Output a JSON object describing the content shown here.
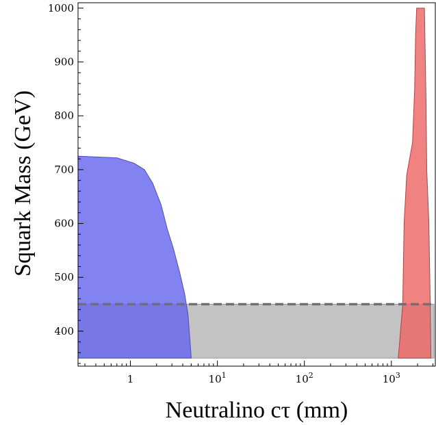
{
  "chart_data": {
    "type": "area",
    "xlabel": "Neutralino cτ (mm)",
    "ylabel": "Squark Mass (GeV)",
    "x_scale": "log",
    "xlim": [
      0.25,
      3200
    ],
    "ylim": [
      335,
      1010
    ],
    "x_ticks": [
      {
        "value": 1,
        "base": "1",
        "exp": ""
      },
      {
        "value": 10,
        "base": "10",
        "exp": "1"
      },
      {
        "value": 100,
        "base": "10",
        "exp": "2"
      },
      {
        "value": 1000,
        "base": "10",
        "exp": "3"
      }
    ],
    "y_ticks": [
      400,
      500,
      600,
      700,
      800,
      900,
      1000
    ],
    "grid": false,
    "colors": {
      "blue_region": "#6666ee",
      "red_region": "#ee6666",
      "gray_band": "#b8b8b8",
      "dashed_line": "#707070"
    },
    "series": [
      {
        "color": "#6666ee",
        "points": [
          [
            0.25,
            725
          ],
          [
            0.7,
            722
          ],
          [
            1.1,
            712
          ],
          [
            1.45,
            700
          ],
          [
            1.8,
            675
          ],
          [
            2.25,
            635
          ],
          [
            2.65,
            590
          ],
          [
            3.1,
            555
          ],
          [
            3.7,
            508
          ],
          [
            4.2,
            470
          ],
          [
            4.6,
            430
          ],
          [
            5.0,
            350
          ],
          [
            0.25,
            350
          ]
        ]
      },
      {
        "color": "#ee6666",
        "points": [
          [
            1950,
            1000
          ],
          [
            2400,
            1000
          ],
          [
            2500,
            830
          ],
          [
            2550,
            700
          ],
          [
            2700,
            600
          ],
          [
            2800,
            450
          ],
          [
            2850,
            350
          ],
          [
            1200,
            350
          ],
          [
            1350,
            450
          ],
          [
            1400,
            600
          ],
          [
            1500,
            690
          ],
          [
            1750,
            750
          ],
          [
            1850,
            850
          ],
          [
            1900,
            950
          ]
        ]
      },
      {
        "color": "#b8b8b8",
        "points": [
          [
            0.25,
            350
          ],
          [
            3100,
            350
          ],
          [
            3100,
            450
          ],
          [
            0.25,
            450
          ]
        ]
      }
    ],
    "annotations": [
      {
        "type": "dashed-line",
        "y": 450,
        "x_range": [
          0.25,
          3100
        ]
      }
    ]
  }
}
